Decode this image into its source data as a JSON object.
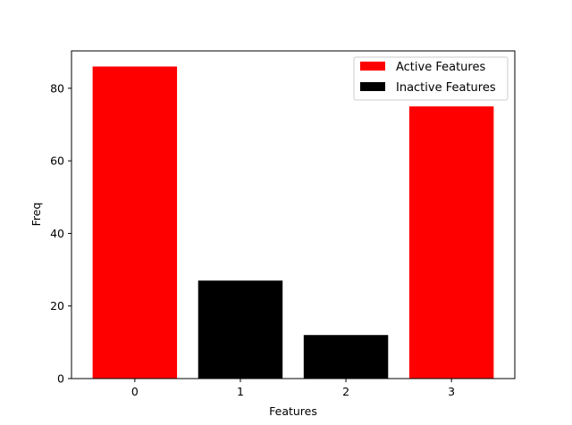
{
  "chart_data": {
    "type": "bar",
    "categories": [
      "0",
      "1",
      "2",
      "3"
    ],
    "values": [
      86,
      27,
      12,
      75
    ],
    "bar_series": [
      "Active Features",
      "Inactive Features",
      "Inactive Features",
      "Active Features"
    ],
    "series": [
      {
        "name": "Active Features",
        "color": "#ff0000"
      },
      {
        "name": "Inactive Features",
        "color": "#000000"
      }
    ],
    "title": "",
    "xlabel": "Features",
    "ylabel": "Freq",
    "ylim": [
      0,
      90.3
    ],
    "yticks": [
      0,
      20,
      40,
      60,
      80
    ],
    "xlim": [
      -0.6,
      3.6
    ],
    "grid": false,
    "legend_position": "top-right"
  }
}
